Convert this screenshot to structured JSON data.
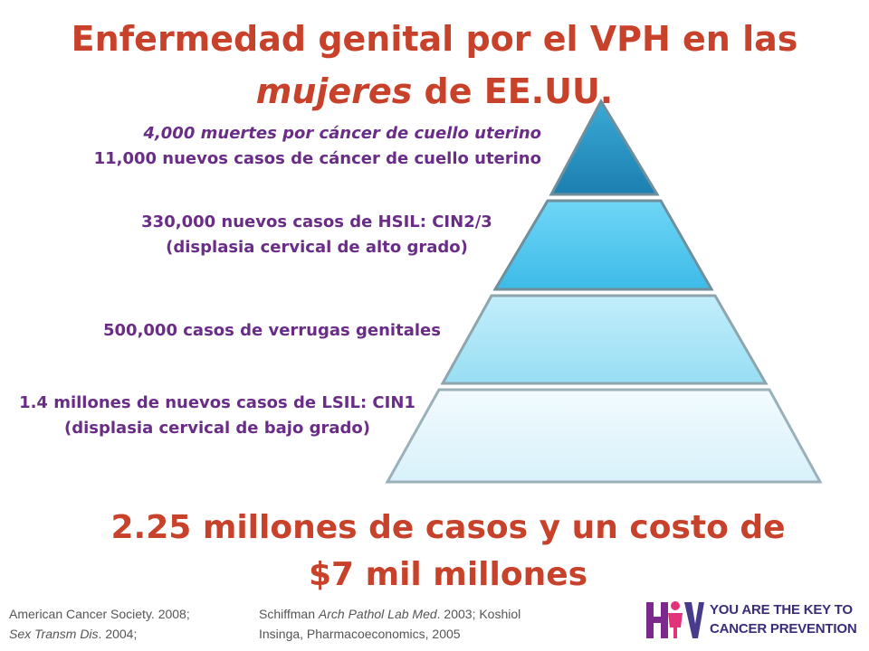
{
  "title": {
    "line1": "Enfermedad genital por el VPH en las",
    "line2_italic": "mujeres",
    "line2_rest": " de EE.UU."
  },
  "pyramid": {
    "levels": [
      {
        "lines": [
          "4,000 muertes por cáncer de cuello uterino",
          "11,000 nuevos casos de cáncer de cuello uterino"
        ],
        "color": "#1f8fbf"
      },
      {
        "lines": [
          "330,000 nuevos casos de HSIL: CIN2/3",
          "(displasia cervical de alto grado)"
        ],
        "color": "#4ec8ee"
      },
      {
        "lines": [
          "500,000 casos de verrugas genitales"
        ],
        "color": "#a8e6f8"
      },
      {
        "lines": [
          "1.4 millones de nuevos casos de LSIL: CIN1",
          "(displasia cervical de bajo grado)"
        ],
        "color": "#e4f6fc"
      }
    ]
  },
  "total": {
    "line1": "2.25 millones de casos y un costo de",
    "line2": "$7 mil millones"
  },
  "references": {
    "row1_a": "American Cancer Society. 2008;",
    "row1_b_pre": "Schiffman ",
    "row1_b_italic": "Arch Pathol Lab Med",
    "row1_b_post": ". 2003;  Koshiol",
    "row2_a_italic": "Sex Transm Dis",
    "row2_a_post": ". 2004;",
    "row2_b": "Insinga, Pharmacoeconomics, 2005"
  },
  "logo": {
    "mark_text": "HPV",
    "line1": "YOU ARE THE KEY TO",
    "line2": "CANCER PREVENTION"
  },
  "colors": {
    "title": "#c8412a",
    "labels": "#6a2d87",
    "refs": "#555555",
    "logo_text": "#3b2c7a"
  }
}
